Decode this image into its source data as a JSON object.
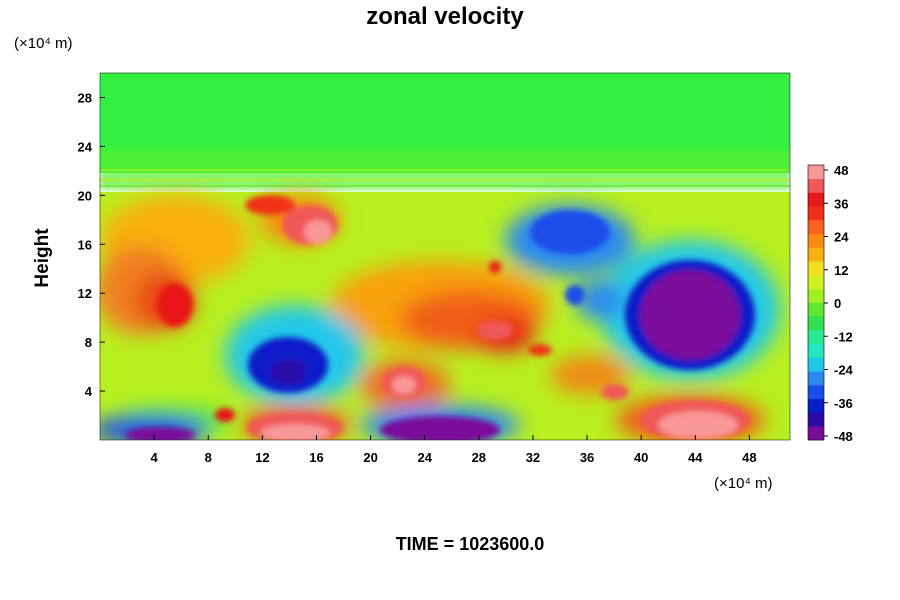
{
  "chart_data": {
    "type": "heatmap",
    "title": "zonal velocity",
    "ylabel": "Height",
    "xlabel": "",
    "x_unit_label": "(×10⁴ m)",
    "y_unit_label": "(×10⁴ m)",
    "xlim": [
      0,
      51
    ],
    "ylim": [
      0,
      30
    ],
    "xticks": [
      4,
      8,
      12,
      16,
      20,
      24,
      28,
      32,
      36,
      40,
      44,
      48
    ],
    "yticks": [
      4,
      8,
      12,
      16,
      20,
      24,
      28
    ],
    "colorbar": {
      "range": [
        -48,
        48
      ],
      "ticks": [
        48,
        36,
        24,
        12,
        0,
        -12,
        -24,
        -36,
        -48
      ],
      "colors": [
        "#7a0a9a",
        "#2b0aa8",
        "#0a1ec8",
        "#1a4ee8",
        "#2a8af0",
        "#20c8e8",
        "#20e8c0",
        "#28e890",
        "#30e050",
        "#60e830",
        "#a0f020",
        "#d0f020",
        "#f0e020",
        "#f8b010",
        "#f88a10",
        "#f86020",
        "#f03018",
        "#e81818",
        "#f05858",
        "#f89898"
      ]
    },
    "features": [
      {
        "x": 44,
        "y": 9.5,
        "value": -48
      },
      {
        "x": 14,
        "y": 5.5,
        "value": -40
      },
      {
        "x": 25,
        "y": 1.2,
        "value": -48
      },
      {
        "x": 5,
        "y": 0.5,
        "value": -44
      },
      {
        "x": 36,
        "y": 16,
        "value": -30
      },
      {
        "x": 23,
        "y": 4.5,
        "value": 44
      },
      {
        "x": 15.5,
        "y": 17,
        "value": 44
      },
      {
        "x": 44,
        "y": 1.5,
        "value": 48
      },
      {
        "x": 14,
        "y": 0.8,
        "value": 46
      },
      {
        "x": 4,
        "y": 12.5,
        "value": 30
      },
      {
        "x": 29,
        "y": 9.5,
        "value": 34
      },
      {
        "x": 36,
        "y": 6,
        "value": 30
      },
      {
        "x": 22,
        "y": 11,
        "value": 22
      }
    ],
    "footer_label": "TIME = 1023600.0"
  }
}
